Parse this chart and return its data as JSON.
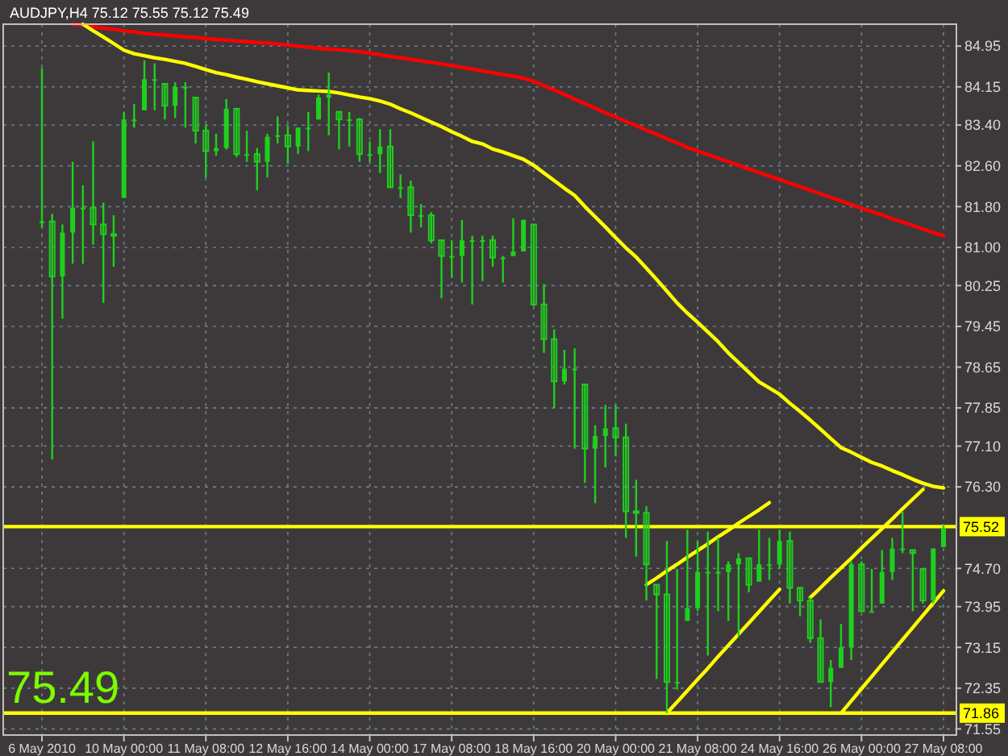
{
  "chart_data": {
    "type": "candlestick",
    "title": "AUDJPY,H4 75.12 75.55 75.12 75.49",
    "categories": [
      "6 May 2010",
      null,
      null,
      null,
      null,
      null,
      null,
      null,
      "10 May 00:00",
      null,
      null,
      null,
      null,
      null,
      null,
      null,
      "11 May 08:00",
      null,
      null,
      null,
      null,
      null,
      null,
      null,
      "12 May 16:00",
      null,
      null,
      null,
      null,
      null,
      null,
      null,
      "14 May 00:00",
      null,
      null,
      null,
      null,
      null,
      null,
      null,
      "17 May 08:00",
      null,
      null,
      null,
      null,
      null,
      null,
      null,
      "18 May 16:00",
      null,
      null,
      null,
      null,
      null,
      null,
      null,
      "20 May 00:00",
      null,
      null,
      null,
      null,
      null,
      null,
      null,
      "21 May 08:00",
      null,
      null,
      null,
      null,
      null,
      null,
      null,
      "24 May 16:00",
      null,
      null,
      null,
      null,
      null,
      null,
      null,
      "26 May 00:00",
      null,
      null,
      null,
      null,
      null,
      null,
      null,
      "27 May 08:00"
    ],
    "color": "#1ed01e",
    "ohlc": [
      [
        81.51,
        84.52,
        81.39,
        81.51
      ],
      [
        81.51,
        81.66,
        76.84,
        80.43
      ],
      [
        80.43,
        81.45,
        79.6,
        81.29
      ],
      [
        81.29,
        82.68,
        80.68,
        81.78
      ],
      [
        81.78,
        82.22,
        80.68,
        81.78
      ],
      [
        81.78,
        83.08,
        81.05,
        81.45
      ],
      [
        81.45,
        81.88,
        79.91,
        81.26
      ],
      [
        81.26,
        81.63,
        80.62,
        81.23
      ],
      [
        81.97,
        83.66,
        81.97,
        83.51
      ],
      [
        83.51,
        83.81,
        83.35,
        83.51
      ],
      [
        83.69,
        84.67,
        83.69,
        84.3
      ],
      [
        84.3,
        84.61,
        83.69,
        84.3
      ],
      [
        84.21,
        84.21,
        83.51,
        83.78
      ],
      [
        83.78,
        84.24,
        83.54,
        84.15
      ],
      [
        84.15,
        84.24,
        83.35,
        84.15
      ],
      [
        83.94,
        83.94,
        83.04,
        83.29
      ],
      [
        83.29,
        83.41,
        82.37,
        82.89
      ],
      [
        82.89,
        83.23,
        82.8,
        82.95
      ],
      [
        82.95,
        83.91,
        82.92,
        83.72
      ],
      [
        83.72,
        83.72,
        82.77,
        82.83
      ],
      [
        82.83,
        83.29,
        82.68,
        82.83
      ],
      [
        82.83,
        82.95,
        82.12,
        82.68
      ],
      [
        82.68,
        83.23,
        82.37,
        83.17
      ],
      [
        83.17,
        83.57,
        83.04,
        83.2
      ],
      [
        83.2,
        83.38,
        82.65,
        82.98
      ],
      [
        82.98,
        83.35,
        82.83,
        83.35
      ],
      [
        83.35,
        83.66,
        82.89,
        83.35
      ],
      [
        83.51,
        84.0,
        83.51,
        83.94
      ],
      [
        83.94,
        84.43,
        83.2,
        84.0
      ],
      [
        83.66,
        83.66,
        82.92,
        83.51
      ],
      [
        83.51,
        83.66,
        82.98,
        83.51
      ],
      [
        83.51,
        83.54,
        82.68,
        82.83
      ],
      [
        82.83,
        83.08,
        82.68,
        82.83
      ],
      [
        82.83,
        83.32,
        82.46,
        82.98
      ],
      [
        82.98,
        83.32,
        82.18,
        82.18
      ],
      [
        82.18,
        82.43,
        81.97,
        82.18
      ],
      [
        82.18,
        82.31,
        81.29,
        81.63
      ],
      [
        81.63,
        81.85,
        81.39,
        81.63
      ],
      [
        81.63,
        81.69,
        81.08,
        81.14
      ],
      [
        81.14,
        81.14,
        80.0,
        80.83
      ],
      [
        80.83,
        81.14,
        80.4,
        80.83
      ],
      [
        80.83,
        81.54,
        80.31,
        81.14
      ],
      [
        81.14,
        81.23,
        79.88,
        81.14
      ],
      [
        81.14,
        81.23,
        80.34,
        81.14
      ],
      [
        81.14,
        81.23,
        80.62,
        80.8
      ],
      [
        80.8,
        80.83,
        80.31,
        80.8
      ],
      [
        80.83,
        81.57,
        80.83,
        80.92
      ],
      [
        80.92,
        81.54,
        80.92,
        81.54
      ],
      [
        81.45,
        81.45,
        79.85,
        79.88
      ],
      [
        79.88,
        80.28,
        78.93,
        79.2
      ],
      [
        79.2,
        79.39,
        77.85,
        78.37
      ],
      [
        78.37,
        78.99,
        78.31,
        78.62
      ],
      [
        78.62,
        79.02,
        77.05,
        78.62
      ],
      [
        78.31,
        78.31,
        76.38,
        77.05
      ],
      [
        77.05,
        77.51,
        75.98,
        77.3
      ],
      [
        77.3,
        77.91,
        76.68,
        77.45
      ],
      [
        77.45,
        77.91,
        76.9,
        77.27
      ],
      [
        77.27,
        77.54,
        75.3,
        75.82
      ],
      [
        75.82,
        76.44,
        74.93,
        75.79
      ],
      [
        75.79,
        75.92,
        74.07,
        74.78
      ],
      [
        74.38,
        74.38,
        72.53,
        74.19
      ],
      [
        74.19,
        75.24,
        71.86,
        72.47
      ],
      [
        72.47,
        74.69,
        72.32,
        72.47
      ],
      [
        73.67,
        75.46,
        73.67,
        73.92
      ],
      [
        73.92,
        75.24,
        73.86,
        74.63
      ],
      [
        74.63,
        75.42,
        72.99,
        74.63
      ],
      [
        74.63,
        75.3,
        73.86,
        74.63
      ],
      [
        74.63,
        74.84,
        73.67,
        74.78
      ],
      [
        74.78,
        75.0,
        73.36,
        74.9
      ],
      [
        74.9,
        74.9,
        74.23,
        74.38
      ],
      [
        74.44,
        75.46,
        74.44,
        74.78
      ],
      [
        74.78,
        75.3,
        74.47,
        74.78
      ],
      [
        74.78,
        75.46,
        74.69,
        75.24
      ],
      [
        75.24,
        75.42,
        74.01,
        74.32
      ],
      [
        74.32,
        74.32,
        73.76,
        74.07
      ],
      [
        74.07,
        74.13,
        73.24,
        73.33
      ],
      [
        73.33,
        73.7,
        72.47,
        72.47
      ],
      [
        72.47,
        72.9,
        71.98,
        72.75
      ],
      [
        72.75,
        73.61,
        72.75,
        73.15
      ],
      [
        73.15,
        74.84,
        72.9,
        74.78
      ],
      [
        74.78,
        74.84,
        73.86,
        73.86
      ],
      [
        73.86,
        74.69,
        73.86,
        73.86
      ],
      [
        74.01,
        75.06,
        74.01,
        74.63
      ],
      [
        74.63,
        75.3,
        74.47,
        75.09
      ],
      [
        75.09,
        75.82,
        75.0,
        75.09
      ],
      [
        75.06,
        75.06,
        73.86,
        75.0
      ],
      [
        74.69,
        74.69,
        74.01,
        74.07
      ],
      [
        74.07,
        75.09,
        74.01,
        75.09
      ],
      [
        75.12,
        75.55,
        75.12,
        75.49
      ]
    ],
    "series": [
      {
        "type": "line",
        "color": "#ff0000",
        "values": [
          null,
          null,
          null,
          85.38,
          85.36,
          85.33,
          85.3,
          85.28,
          85.25,
          85.23,
          85.2,
          85.18,
          85.17,
          85.15,
          85.13,
          85.12,
          85.1,
          85.08,
          85.07,
          85.05,
          85.04,
          85.02,
          85.01,
          84.99,
          84.97,
          84.95,
          84.93,
          84.91,
          84.89,
          84.88,
          84.86,
          84.84,
          84.81,
          84.78,
          84.75,
          84.72,
          84.69,
          84.66,
          84.63,
          84.6,
          84.57,
          84.53,
          84.5,
          84.46,
          84.43,
          84.39,
          84.36,
          84.32,
          84.26,
          84.17,
          84.09,
          84.0,
          83.91,
          83.82,
          83.73,
          83.64,
          83.56,
          83.47,
          83.39,
          83.3,
          83.22,
          83.13,
          83.05,
          82.96,
          82.89,
          82.82,
          82.75,
          82.68,
          82.61,
          82.54,
          82.47,
          82.4,
          82.33,
          82.26,
          82.19,
          82.12,
          82.05,
          81.98,
          81.91,
          81.84,
          81.77,
          81.7,
          81.64,
          81.56,
          81.5,
          81.43,
          81.36,
          81.29,
          81.23
        ]
      },
      {
        "type": "line",
        "color": "#ffff00",
        "values": [
          null,
          null,
          null,
          null,
          85.38,
          85.25,
          85.13,
          85.0,
          84.87,
          84.8,
          84.76,
          84.72,
          84.69,
          84.65,
          84.61,
          84.55,
          84.49,
          84.43,
          84.39,
          84.34,
          84.3,
          84.25,
          84.21,
          84.17,
          84.13,
          84.09,
          84.08,
          84.07,
          84.06,
          84.03,
          83.99,
          83.95,
          83.92,
          83.87,
          83.81,
          83.72,
          83.64,
          83.55,
          83.46,
          83.37,
          83.27,
          83.18,
          83.08,
          83.03,
          82.93,
          82.87,
          82.8,
          82.73,
          82.61,
          82.46,
          82.31,
          82.16,
          82.02,
          81.8,
          81.6,
          81.4,
          81.19,
          80.99,
          80.81,
          80.59,
          80.37,
          80.14,
          79.91,
          79.71,
          79.53,
          79.34,
          79.15,
          78.93,
          78.74,
          78.55,
          78.36,
          78.24,
          78.12,
          77.94,
          77.78,
          77.61,
          77.43,
          77.25,
          77.07,
          76.98,
          76.88,
          76.78,
          76.71,
          76.62,
          76.54,
          76.45,
          76.37,
          76.31,
          76.28
        ]
      },
      {
        "type": "line",
        "color": "#ffff00",
        "values": [
          null,
          null,
          null,
          null,
          null,
          null,
          null,
          null,
          null,
          null,
          null,
          null,
          null,
          null,
          null,
          null,
          null,
          null,
          null,
          null,
          null,
          null,
          null,
          null,
          null,
          null,
          null,
          null,
          null,
          null,
          null,
          null,
          null,
          null,
          null,
          null,
          null,
          null,
          null,
          null,
          null,
          null,
          null,
          null,
          null,
          null,
          null,
          null,
          null,
          null,
          null,
          null,
          null,
          null,
          null,
          null,
          null,
          null,
          null,
          74.38,
          74.51,
          74.65,
          74.78,
          74.92,
          75.05,
          75.18,
          75.32,
          75.45,
          75.59,
          75.72,
          75.85,
          75.99,
          null,
          null,
          null,
          null,
          null,
          null,
          null,
          null,
          null,
          null,
          null,
          null,
          null,
          null,
          null,
          null,
          null
        ]
      },
      {
        "type": "line",
        "color": "#ffff00",
        "values": [
          null,
          null,
          null,
          null,
          null,
          null,
          null,
          null,
          null,
          null,
          null,
          null,
          null,
          null,
          null,
          null,
          null,
          null,
          null,
          null,
          null,
          null,
          null,
          null,
          null,
          null,
          null,
          null,
          null,
          null,
          null,
          null,
          null,
          null,
          null,
          null,
          null,
          null,
          null,
          null,
          null,
          null,
          null,
          null,
          null,
          null,
          null,
          null,
          null,
          null,
          null,
          null,
          null,
          null,
          null,
          null,
          null,
          null,
          null,
          null,
          null,
          71.86,
          72.08,
          72.3,
          72.52,
          72.74,
          72.97,
          73.19,
          73.41,
          73.63,
          73.85,
          74.07,
          74.29,
          null,
          null,
          null,
          null,
          null,
          null,
          null,
          null,
          null,
          null,
          null,
          null,
          null,
          null,
          null,
          null
        ]
      },
      {
        "type": "line",
        "color": "#ffff00",
        "values": [
          null,
          null,
          null,
          null,
          null,
          null,
          null,
          null,
          null,
          null,
          null,
          null,
          null,
          null,
          null,
          null,
          null,
          null,
          null,
          null,
          null,
          null,
          null,
          null,
          null,
          null,
          null,
          null,
          null,
          null,
          null,
          null,
          null,
          null,
          null,
          null,
          null,
          null,
          null,
          null,
          null,
          null,
          null,
          null,
          null,
          null,
          null,
          null,
          null,
          null,
          null,
          null,
          null,
          null,
          null,
          null,
          null,
          null,
          null,
          null,
          null,
          null,
          null,
          null,
          null,
          null,
          null,
          null,
          null,
          null,
          null,
          null,
          null,
          null,
          null,
          74.13,
          74.32,
          74.52,
          74.71,
          74.9,
          75.1,
          75.29,
          75.48,
          75.67,
          75.87,
          76.06,
          76.25,
          null,
          null
        ]
      },
      {
        "type": "line",
        "color": "#ffff00",
        "values": [
          null,
          null,
          null,
          null,
          null,
          null,
          null,
          null,
          null,
          null,
          null,
          null,
          null,
          null,
          null,
          null,
          null,
          null,
          null,
          null,
          null,
          null,
          null,
          null,
          null,
          null,
          null,
          null,
          null,
          null,
          null,
          null,
          null,
          null,
          null,
          null,
          null,
          null,
          null,
          null,
          null,
          null,
          null,
          null,
          null,
          null,
          null,
          null,
          null,
          null,
          null,
          null,
          null,
          null,
          null,
          null,
          null,
          null,
          null,
          null,
          null,
          null,
          null,
          null,
          null,
          null,
          null,
          null,
          null,
          null,
          null,
          null,
          null,
          null,
          null,
          null,
          null,
          null,
          71.86,
          72.1,
          72.34,
          72.58,
          72.82,
          73.06,
          73.3,
          73.54,
          73.78,
          74.02,
          74.26
        ]
      }
    ],
    "ylim": [
      71.43,
      85.38
    ],
    "yticks": [
      84.95,
      84.15,
      {
        "value": 83.4,
        "label": "83.40"
      },
      {
        "value": 82.6,
        "label": "82.60"
      },
      {
        "value": 81.8,
        "label": "81.80"
      },
      {
        "value": 81,
        "label": "81.00"
      },
      80.25,
      79.45,
      78.65,
      77.85,
      {
        "value": 77.1,
        "label": "77.10"
      },
      {
        "value": 76.3,
        "label": "76.30"
      },
      {
        "value": 74.7,
        "label": "74.70"
      },
      73.95,
      73.15,
      72.35,
      71.55
    ],
    "ref_lines": [
      {
        "axis": "y",
        "value": 75.52,
        "label": "75.52",
        "color": "#ffff00"
      },
      {
        "axis": "y",
        "value": 71.86,
        "label": "71.86",
        "color": "#ffff00"
      }
    ],
    "annotations": [
      "75.49"
    ],
    "grid": true
  }
}
